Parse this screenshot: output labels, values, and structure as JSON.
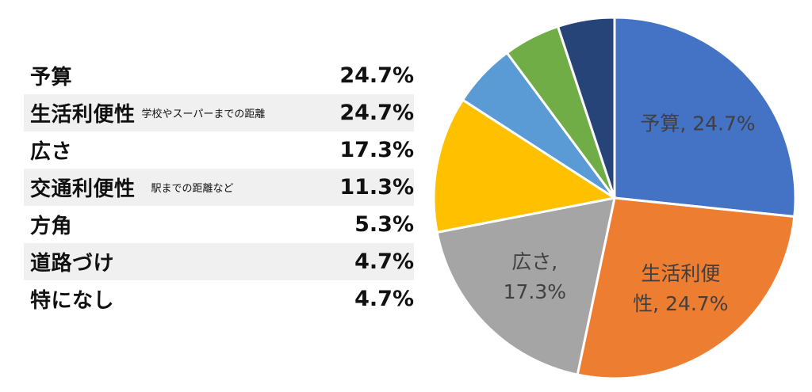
{
  "chart_data": {
    "type": "pie",
    "slices": [
      {
        "label": "予算",
        "note": "",
        "value": 24.7,
        "value_text": "24.7%",
        "color": "#4472C4"
      },
      {
        "label": "生活利便性",
        "note": "学校やスーパーまでの距離",
        "value": 24.7,
        "value_text": "24.7%",
        "color": "#ED7D31"
      },
      {
        "label": "広さ",
        "note": "",
        "value": 17.3,
        "value_text": "17.3%",
        "color": "#A5A5A5"
      },
      {
        "label": "交通利便性",
        "note": "駅までの距離など",
        "value": 11.3,
        "value_text": "11.3%",
        "color": "#FFC000"
      },
      {
        "label": "方角",
        "note": "",
        "value": 5.3,
        "value_text": "5.3%",
        "color": "#5B9BD5"
      },
      {
        "label": "道路づけ",
        "note": "",
        "value": 4.7,
        "value_text": "4.7%",
        "color": "#70AD47"
      },
      {
        "label": "特になし",
        "note": "",
        "value": 4.7,
        "value_text": "4.7%",
        "color": "#264478"
      }
    ],
    "data_labels": [
      {
        "index": 0,
        "lines": [
          "予算, 24.7%"
        ]
      },
      {
        "index": 1,
        "lines": [
          "生活利便",
          "性, 24.7%"
        ]
      },
      {
        "index": 2,
        "lines": [
          "広さ,",
          "17.3%"
        ]
      }
    ]
  }
}
